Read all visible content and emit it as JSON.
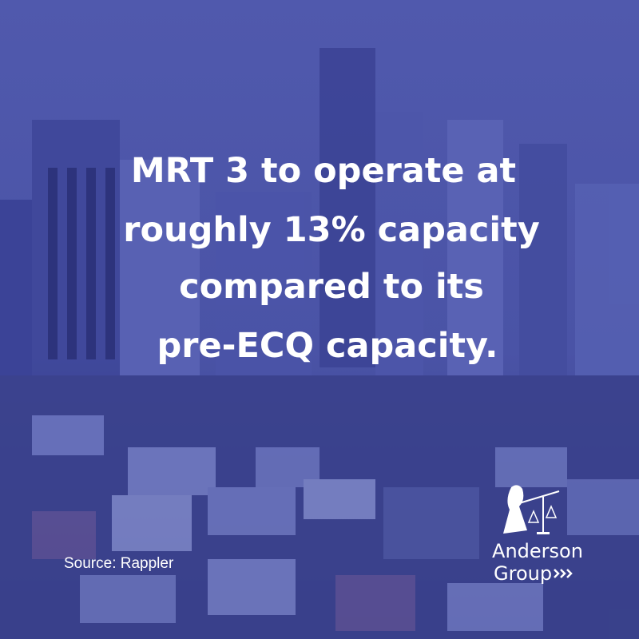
{
  "headline": {
    "lines": [
      "MRT 3 to operate at",
      "roughly 13% capacity",
      "compared to its",
      "pre-ECQ capacity."
    ]
  },
  "source": "Source: Rappler",
  "logo": {
    "line1": "Anderson",
    "line2": "Group"
  }
}
